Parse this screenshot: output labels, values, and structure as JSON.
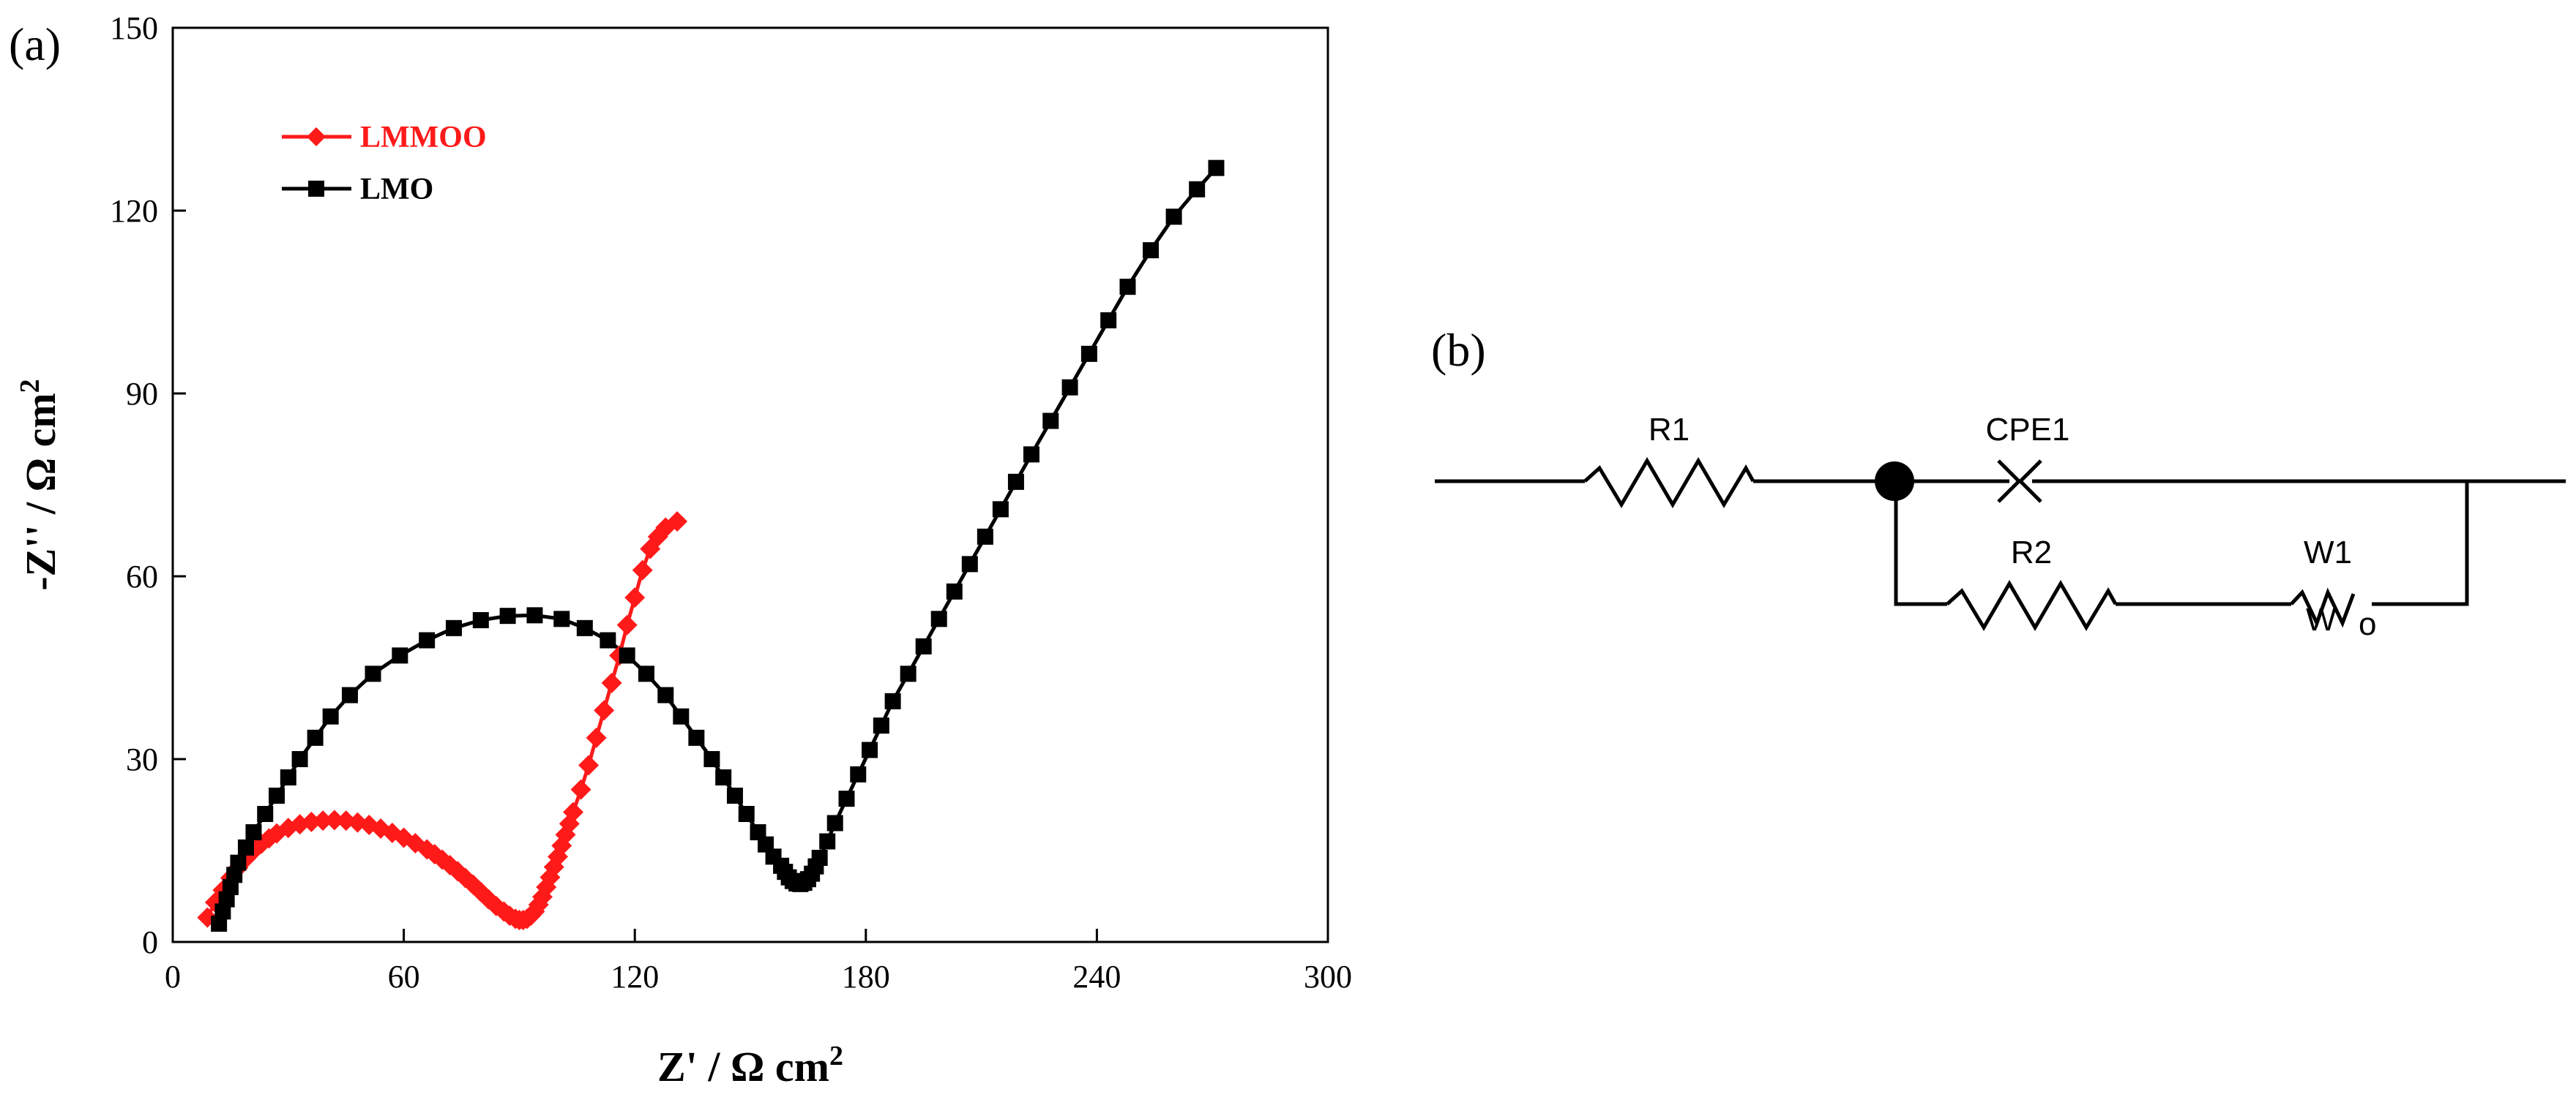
{
  "panel_labels": {
    "a": "(a)",
    "b": "(b)"
  },
  "colors": {
    "LMMOO": "#ff1a1a",
    "LMO": "#000000",
    "axis": "#000000"
  },
  "chart_data": {
    "type": "scatter",
    "title": "",
    "xlabel": "Z' / Ω cm²",
    "ylabel": "-Z'' / Ω cm²",
    "xlabel_parts": {
      "main": "Z' / Ω cm",
      "sup": "2"
    },
    "ylabel_parts": {
      "main": "-Z'' / Ω cm",
      "sup": "2"
    },
    "xlim": [
      0,
      300
    ],
    "ylim": [
      0,
      150
    ],
    "xticks": [
      0,
      60,
      120,
      180,
      240,
      300
    ],
    "yticks": [
      0,
      30,
      60,
      90,
      120,
      150
    ],
    "legend_position": "top-left",
    "series": [
      {
        "name": "LMMOO",
        "marker": "diamond",
        "x": [
          9,
          11,
          13,
          15,
          17,
          19,
          21,
          23,
          25,
          27,
          30,
          33,
          36,
          39,
          42,
          45,
          48,
          51,
          54,
          57,
          60,
          63,
          66,
          68,
          70,
          72,
          74,
          76,
          78,
          80,
          82,
          84,
          86,
          87.5,
          89,
          90,
          91,
          92,
          93,
          94,
          95,
          96,
          97,
          98,
          99,
          100,
          101,
          102,
          103,
          104,
          106,
          108,
          110,
          112,
          114,
          116,
          118,
          120,
          122,
          124,
          126,
          128,
          131
        ],
        "y": [
          4,
          6.5,
          8.5,
          10.5,
          12.2,
          13.7,
          15,
          16.1,
          17,
          17.8,
          18.7,
          19.3,
          19.7,
          19.9,
          20,
          19.9,
          19.6,
          19.2,
          18.6,
          17.9,
          17.1,
          16.2,
          15.2,
          14.4,
          13.5,
          12.6,
          11.6,
          10.5,
          9.4,
          8.2,
          7,
          5.9,
          5,
          4.3,
          3.8,
          3.6,
          3.6,
          3.8,
          4.3,
          5,
          6.1,
          7.4,
          9,
          10.6,
          12.3,
          14,
          15.8,
          17.6,
          19.4,
          21.3,
          25,
          29,
          33.5,
          38,
          42.5,
          47,
          52,
          56.5,
          61,
          64.5,
          66.5,
          68,
          69
        ]
      },
      {
        "name": "LMO",
        "marker": "square",
        "x": [
          12,
          13,
          14,
          15,
          16,
          17,
          19,
          21,
          24,
          27,
          30,
          33,
          37,
          41,
          46,
          52,
          59,
          66,
          73,
          80,
          87,
          94,
          101,
          107,
          113,
          118,
          123,
          128,
          132,
          136,
          140,
          143,
          146,
          149,
          152,
          154,
          156,
          158,
          159,
          160,
          161,
          162,
          163,
          164,
          165,
          166,
          167,
          168,
          170,
          172,
          175,
          178,
          181,
          184,
          187,
          191,
          195,
          199,
          203,
          207,
          211,
          215,
          219,
          223,
          228,
          233,
          238,
          243,
          248,
          254,
          260,
          266,
          271
        ],
        "y": [
          3,
          5,
          7,
          9,
          11,
          13,
          15.5,
          18,
          21,
          24,
          27,
          30,
          33.5,
          37,
          40.5,
          44,
          47,
          49.5,
          51.5,
          52.8,
          53.5,
          53.6,
          53,
          51.5,
          49.5,
          47,
          44,
          40.5,
          37,
          33.5,
          30,
          27,
          24,
          21,
          18,
          16,
          14,
          12.5,
          11.5,
          10.6,
          10,
          9.6,
          9.5,
          9.7,
          10.3,
          11.2,
          12.4,
          13.8,
          16.5,
          19.5,
          23.5,
          27.5,
          31.5,
          35.5,
          39.5,
          44,
          48.5,
          53,
          57.5,
          62,
          66.5,
          71,
          75.5,
          80,
          85.5,
          91,
          96.5,
          102,
          107.5,
          113.5,
          119,
          123.5,
          127
        ]
      }
    ]
  },
  "circuit": {
    "labels": {
      "r1": "R1",
      "cpe1": "CPE1",
      "r2": "R2",
      "w1": "W1",
      "wo": "W",
      "wo_sub": "o"
    }
  }
}
